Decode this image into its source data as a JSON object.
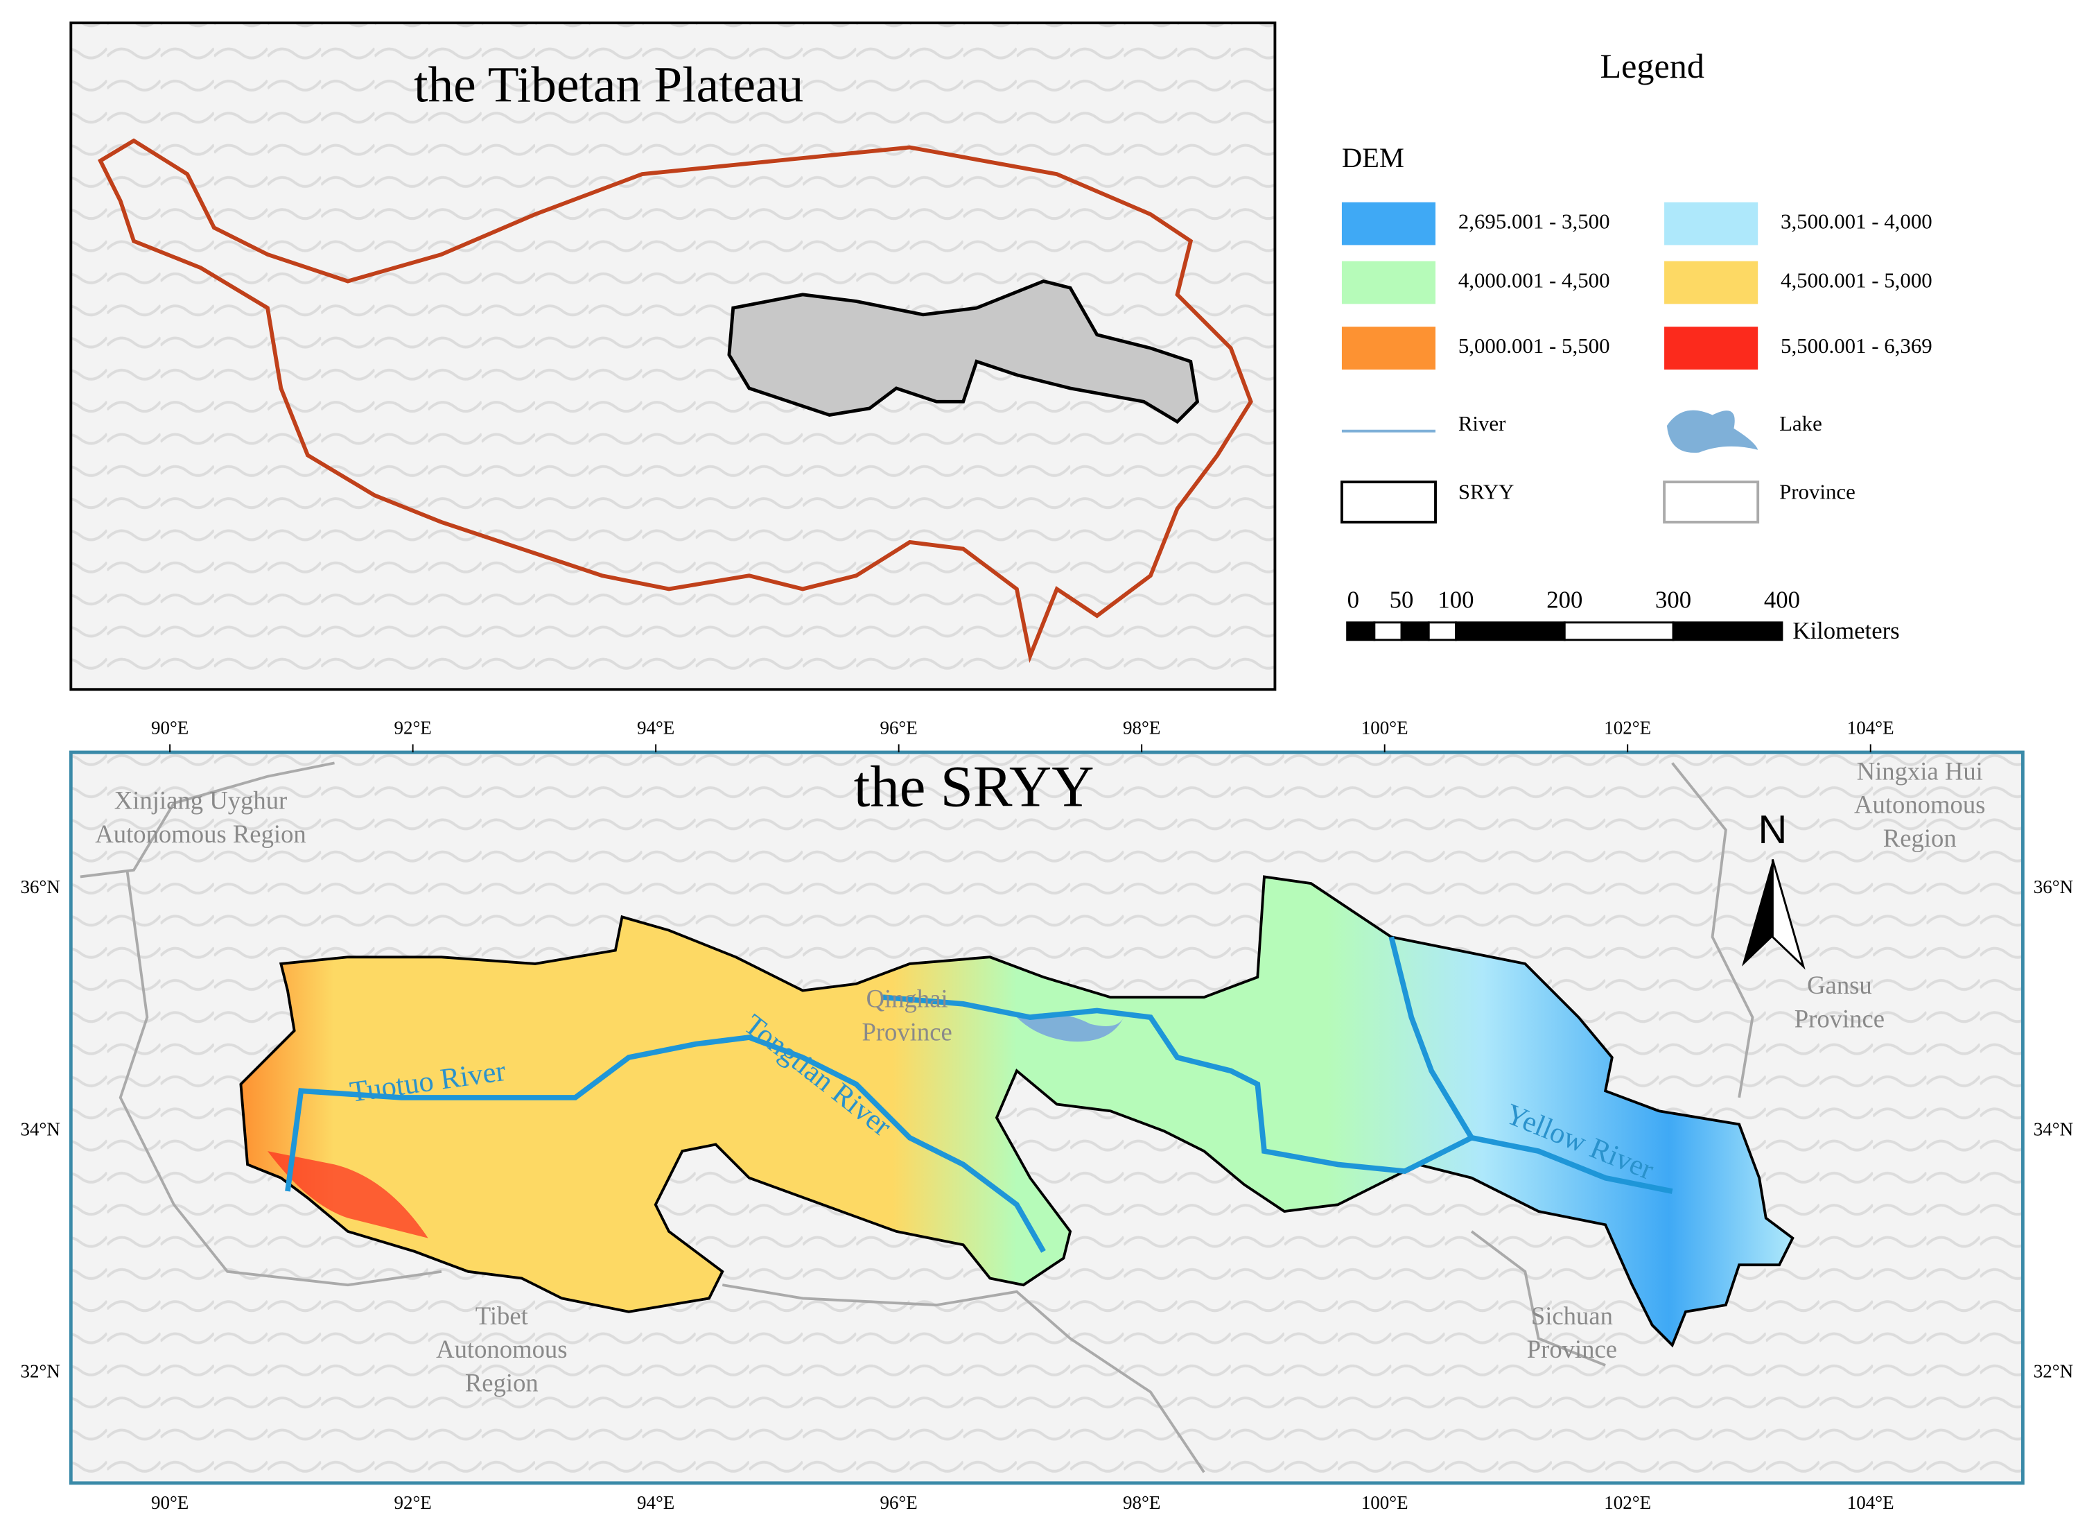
{
  "top_map": {
    "title": "the Tibetan Plateau"
  },
  "legend": {
    "title": "Legend",
    "dem_title": "DEM",
    "dem_classes": [
      {
        "label": "2,695.001 - 3,500",
        "color": "#3fa9f5"
      },
      {
        "label": "3,500.001 - 4,000",
        "color": "#aee8fb"
      },
      {
        "label": "4,000.001 - 4,500",
        "color": "#b6fbb9"
      },
      {
        "label": "4,500.001 - 5,000",
        "color": "#fdd964"
      },
      {
        "label": "5,000.001 - 5,500",
        "color": "#fd9232"
      },
      {
        "label": "5,500.001 - 6,369",
        "color": "#fc2a1c"
      }
    ],
    "items": [
      {
        "label": "River"
      },
      {
        "label": "Lake"
      },
      {
        "label": "SRYY"
      },
      {
        "label": "Province"
      }
    ],
    "scale": {
      "ticks": [
        0,
        50,
        100,
        200,
        300,
        400
      ],
      "unit": "Kilometers"
    }
  },
  "bottom_map": {
    "title": "the SRYY",
    "lon_labels": [
      "90°E",
      "92°E",
      "94°E",
      "96°E",
      "98°E",
      "100°E",
      "102°E",
      "104°E"
    ],
    "lat_labels": [
      "36°N",
      "34°N",
      "32°N"
    ],
    "places": [
      {
        "lines": [
          "Xinjiang Uyghur",
          "Autonomous Region"
        ]
      },
      {
        "lines": [
          "Ningxia Hui",
          "Autonomous",
          "Region"
        ]
      },
      {
        "lines": [
          "Qinghai",
          "Province"
        ]
      },
      {
        "lines": [
          "Gansu",
          "Province"
        ]
      },
      {
        "lines": [
          "Tibet",
          "Autonomous",
          "Region"
        ]
      },
      {
        "lines": [
          "Sichuan",
          "Province"
        ]
      }
    ],
    "rivers": [
      "Tuotuo River",
      "Tongtian River",
      "Yellow River"
    ],
    "north": "N"
  }
}
